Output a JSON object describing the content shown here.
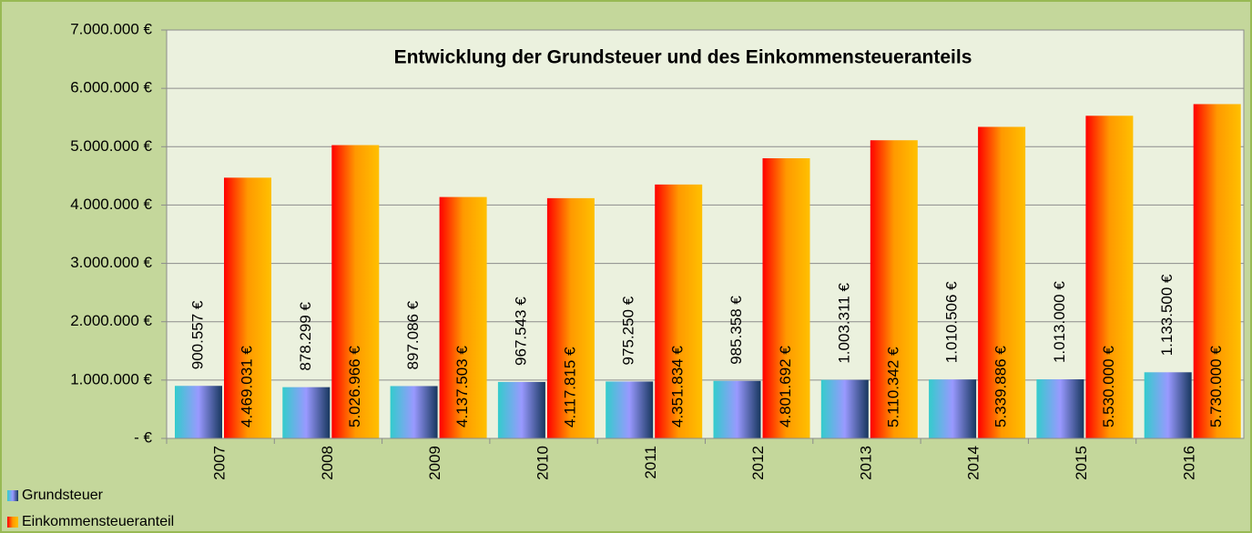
{
  "chart_data": {
    "type": "bar",
    "title": "Entwicklung der Grundsteuer und des Einkommensteueranteils",
    "categories": [
      "2007",
      "2008",
      "2009",
      "2010",
      "2011",
      "2012",
      "2013",
      "2014",
      "2015",
      "2016"
    ],
    "series": [
      {
        "name": "Grundsteuer",
        "color": [
          "#33cccc",
          "#9999ff",
          "#17375e"
        ],
        "values": [
          900557,
          878299,
          897086,
          967543,
          975250,
          985358,
          1003311,
          1010506,
          1013000,
          1133500
        ],
        "value_labels": [
          "900.557 €",
          "878.299 €",
          "897.086 €",
          "967.543 €",
          "975.250 €",
          "985.358 €",
          "1.003.311 €",
          "1.010.506 €",
          "1.013.000 €",
          "1.133.500 €"
        ]
      },
      {
        "name": "Einkommensteueranteil",
        "color": [
          "#ff0000",
          "#ff9900",
          "#ffc000"
        ],
        "values": [
          4469031,
          5026966,
          4137503,
          4117815,
          4351834,
          4801692,
          5110342,
          5339886,
          5530000,
          5730000
        ],
        "value_labels": [
          "4.469.031 €",
          "5.026.966 €",
          "4.137.503 €",
          "4.117.815 €",
          "4.351.834 €",
          "4.801.692 €",
          "5.110.342 €",
          "5.339.886 €",
          "5.530.000 €",
          "5.730.000 €"
        ]
      }
    ],
    "ylim": [
      0,
      7000000
    ],
    "yticks": [
      {
        "value": 0,
        "label": "-   €"
      },
      {
        "value": 1000000,
        "label": "1.000.000 €"
      },
      {
        "value": 2000000,
        "label": "2.000.000 €"
      },
      {
        "value": 3000000,
        "label": "3.000.000 €"
      },
      {
        "value": 4000000,
        "label": "4.000.000 €"
      },
      {
        "value": 5000000,
        "label": "5.000.000 €"
      },
      {
        "value": 6000000,
        "label": "6.000.000 €"
      },
      {
        "value": 7000000,
        "label": "7.000.000 €"
      }
    ],
    "grid": true,
    "legend": "bottom-left"
  }
}
